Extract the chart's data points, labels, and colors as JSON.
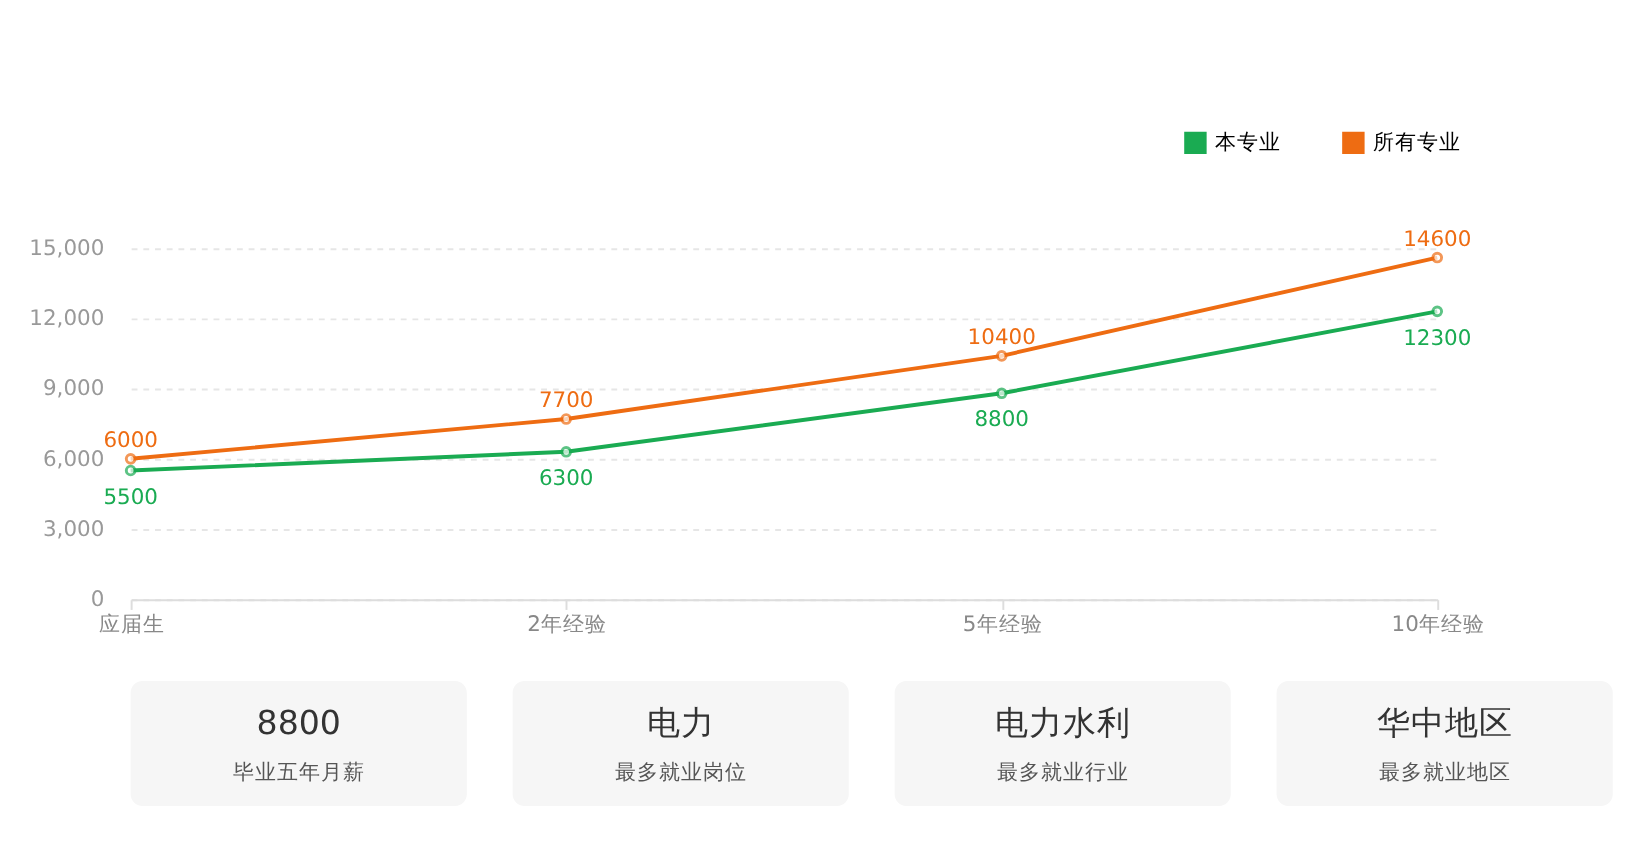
{
  "chart_data": [
    {
      "type": "line",
      "categories": [
        "应届生",
        "2年经验",
        "5年经验",
        "10年经验"
      ],
      "series": [
        {
          "name": "本专业",
          "color": "#1aab52",
          "values": [
            5500,
            6300,
            8800,
            12300
          ]
        },
        {
          "name": "所有专业",
          "color": "#ee6c12",
          "values": [
            6000,
            7700,
            10400,
            14600
          ]
        }
      ],
      "ylim": [
        0,
        15000
      ],
      "yticks": [
        0,
        {
          "value": 3000,
          "label": "3,000"
        },
        {
          "value": 6000,
          "label": "6,000"
        },
        {
          "value": 9000,
          "label": "9,000"
        },
        {
          "value": 12000,
          "label": "12,000"
        },
        {
          "value": 15000,
          "label": "15,000"
        }
      ],
      "grid": "y",
      "legend": "top right",
      "marker": "circle",
      "line_style": "solid",
      "data_labels": true
    },
    {
      "type": "other",
      "annotations": [
        "8800",
        "毕业五年月薪",
        "电力",
        "最多就业岗位",
        "电力水利",
        "最多就业行业",
        "华中地区",
        "最多就业地区"
      ]
    }
  ]
}
